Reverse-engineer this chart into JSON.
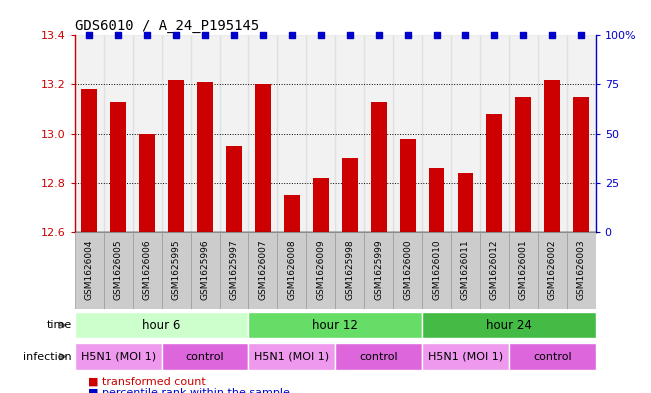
{
  "title": "GDS6010 / A_24_P195145",
  "samples": [
    "GSM1626004",
    "GSM1626005",
    "GSM1626006",
    "GSM1625995",
    "GSM1625996",
    "GSM1625997",
    "GSM1626007",
    "GSM1626008",
    "GSM1626009",
    "GSM1625998",
    "GSM1625999",
    "GSM1626000",
    "GSM1626010",
    "GSM1626011",
    "GSM1626012",
    "GSM1626001",
    "GSM1626002",
    "GSM1626003"
  ],
  "bar_values": [
    13.18,
    13.13,
    13.0,
    13.22,
    13.21,
    12.95,
    13.2,
    12.75,
    12.82,
    12.9,
    13.13,
    12.98,
    12.86,
    12.84,
    13.08,
    13.15,
    13.22,
    13.15
  ],
  "percentile_values": [
    100,
    100,
    100,
    100,
    100,
    100,
    100,
    100,
    100,
    100,
    100,
    100,
    100,
    100,
    100,
    100,
    100,
    100
  ],
  "bar_color": "#cc0000",
  "percentile_color": "#0000cc",
  "ylim_left": [
    12.6,
    13.4
  ],
  "ylim_right": [
    0,
    100
  ],
  "yticks_left": [
    12.6,
    12.8,
    13.0,
    13.2,
    13.4
  ],
  "yticks_right": [
    0,
    25,
    50,
    75,
    100
  ],
  "ytick_labels_right": [
    "0",
    "25",
    "50",
    "75",
    "100%"
  ],
  "time_groups": [
    {
      "label": "hour 6",
      "start": 0,
      "end": 6,
      "color": "#ccffcc"
    },
    {
      "label": "hour 12",
      "start": 6,
      "end": 12,
      "color": "#66dd66"
    },
    {
      "label": "hour 24",
      "start": 12,
      "end": 18,
      "color": "#44bb44"
    }
  ],
  "infection_groups": [
    {
      "label": "H5N1 (MOI 1)",
      "start": 0,
      "end": 3,
      "color": "#ee99ee"
    },
    {
      "label": "control",
      "start": 3,
      "end": 6,
      "color": "#dd66dd"
    },
    {
      "label": "H5N1 (MOI 1)",
      "start": 6,
      "end": 9,
      "color": "#ee99ee"
    },
    {
      "label": "control",
      "start": 9,
      "end": 12,
      "color": "#dd66dd"
    },
    {
      "label": "H5N1 (MOI 1)",
      "start": 12,
      "end": 15,
      "color": "#ee99ee"
    },
    {
      "label": "control",
      "start": 15,
      "end": 18,
      "color": "#dd66dd"
    }
  ],
  "sample_bg_color": "#cccccc",
  "sample_border_color": "#999999",
  "grid_color": "#000000",
  "background_color": "#ffffff",
  "bar_width": 0.55,
  "time_label": "time",
  "infection_label": "infection",
  "legend_items": [
    {
      "label": "transformed count",
      "color": "#cc0000"
    },
    {
      "label": "percentile rank within the sample",
      "color": "#0000cc"
    }
  ]
}
